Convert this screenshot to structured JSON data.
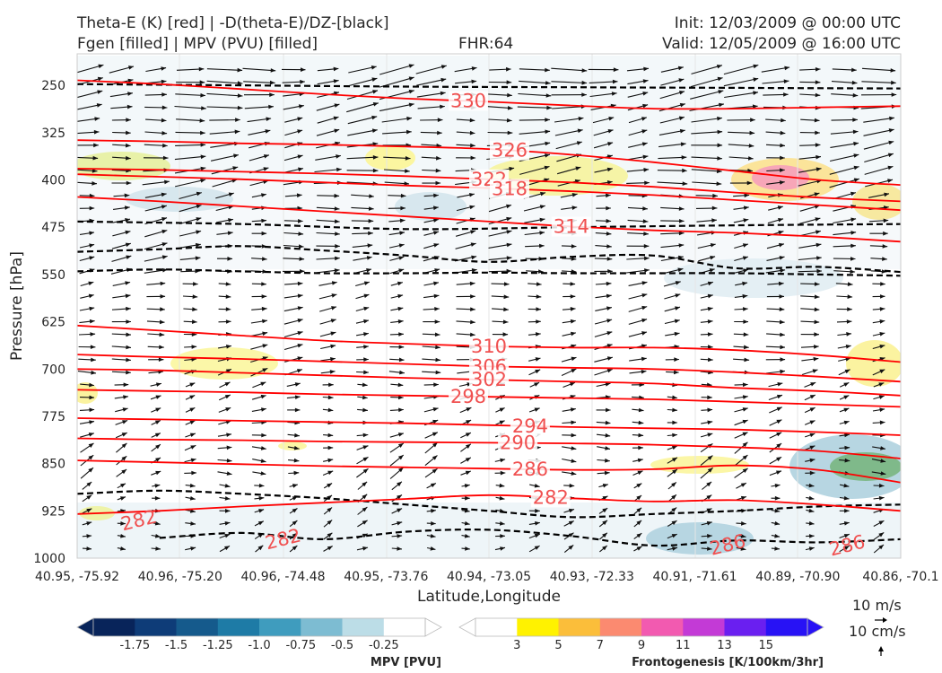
{
  "header": {
    "title_left_1": "Theta-E (K) [red] | -D(theta-E)/DZ-[black]",
    "title_left_2": "Fgen [filled] | MPV (PVU) [filled]",
    "title_center": "FHR:64",
    "title_right_1": "Init: 12/03/2009 @ 00:00 UTC",
    "title_right_2": "Valid: 12/05/2009 @ 16:00 UTC"
  },
  "chart_data": {
    "type": "contour",
    "xlabel": "Latitude,Longitude",
    "ylabel": "Pressure [hPa]",
    "x_ticks": [
      "40.95, -75.92",
      "40.96, -75.20",
      "40.96, -74.48",
      "40.95, -73.76",
      "40.94, -73.05",
      "40.93, -72.33",
      "40.91, -71.61",
      "40.89, -70.90",
      "40.86, -70.1"
    ],
    "y_ticks": [
      250,
      325,
      400,
      475,
      550,
      625,
      700,
      775,
      850,
      925,
      1000
    ],
    "ylim": [
      1000,
      200
    ],
    "theta_e_contours": [
      {
        "label": "330",
        "points": [
          [
            0.0,
            242
          ],
          [
            0.1,
            248
          ],
          [
            0.2,
            256
          ],
          [
            0.3,
            264
          ],
          [
            0.4,
            271
          ],
          [
            0.5,
            276
          ],
          [
            0.6,
            282
          ],
          [
            0.7,
            287
          ],
          [
            0.8,
            287
          ],
          [
            0.9,
            285
          ],
          [
            1.0,
            283
          ]
        ]
      },
      {
        "label": "326",
        "points": [
          [
            0.0,
            337
          ],
          [
            0.1,
            339
          ],
          [
            0.2,
            342
          ],
          [
            0.3,
            344
          ],
          [
            0.4,
            347
          ],
          [
            0.5,
            351
          ],
          [
            0.6,
            360
          ],
          [
            0.7,
            372
          ],
          [
            0.8,
            386
          ],
          [
            0.9,
            400
          ],
          [
            1.0,
            408
          ]
        ]
      },
      {
        "label": "322",
        "points": [
          [
            0.0,
            382
          ],
          [
            0.1,
            384
          ],
          [
            0.2,
            387
          ],
          [
            0.3,
            390
          ],
          [
            0.4,
            394
          ],
          [
            0.5,
            399
          ],
          [
            0.6,
            404
          ],
          [
            0.7,
            411
          ],
          [
            0.8,
            420
          ],
          [
            0.9,
            428
          ],
          [
            1.0,
            434
          ]
        ]
      },
      {
        "label": "318",
        "points": [
          [
            0.0,
            391
          ],
          [
            0.1,
            395
          ],
          [
            0.2,
            399
          ],
          [
            0.3,
            404
          ],
          [
            0.4,
            409
          ],
          [
            0.5,
            413
          ],
          [
            0.6,
            418
          ],
          [
            0.7,
            424
          ],
          [
            0.8,
            432
          ],
          [
            0.9,
            440
          ],
          [
            1.0,
            448
          ]
        ]
      },
      {
        "label": "314",
        "points": [
          [
            0.0,
            427
          ],
          [
            0.1,
            434
          ],
          [
            0.2,
            442
          ],
          [
            0.3,
            450
          ],
          [
            0.4,
            458
          ],
          [
            0.5,
            466
          ],
          [
            0.6,
            474
          ],
          [
            0.7,
            480
          ],
          [
            0.8,
            484
          ],
          [
            0.9,
            490
          ],
          [
            1.0,
            498
          ]
        ]
      },
      {
        "label": "310",
        "points": [
          [
            0.0,
            631
          ],
          [
            0.1,
            639
          ],
          [
            0.2,
            647
          ],
          [
            0.3,
            655
          ],
          [
            0.4,
            660
          ],
          [
            0.5,
            664
          ],
          [
            0.6,
            666
          ],
          [
            0.7,
            666
          ],
          [
            0.8,
            670
          ],
          [
            0.9,
            678
          ],
          [
            1.0,
            689
          ]
        ]
      },
      {
        "label": "306",
        "points": [
          [
            0.0,
            677
          ],
          [
            0.1,
            681
          ],
          [
            0.2,
            684
          ],
          [
            0.3,
            688
          ],
          [
            0.4,
            692
          ],
          [
            0.5,
            696
          ],
          [
            0.6,
            698
          ],
          [
            0.7,
            700
          ],
          [
            0.8,
            705
          ],
          [
            0.9,
            712
          ],
          [
            1.0,
            720
          ]
        ]
      },
      {
        "label": "302",
        "points": [
          [
            0.0,
            700
          ],
          [
            0.1,
            702
          ],
          [
            0.2,
            706
          ],
          [
            0.3,
            710
          ],
          [
            0.4,
            714
          ],
          [
            0.5,
            717
          ],
          [
            0.6,
            720
          ],
          [
            0.7,
            723
          ],
          [
            0.8,
            730
          ],
          [
            0.9,
            735
          ],
          [
            1.0,
            742
          ]
        ]
      },
      {
        "label": "298",
        "points": [
          [
            0.0,
            733
          ],
          [
            0.1,
            735
          ],
          [
            0.2,
            737
          ],
          [
            0.3,
            740
          ],
          [
            0.4,
            742
          ],
          [
            0.5,
            744
          ],
          [
            0.6,
            746
          ],
          [
            0.7,
            748
          ],
          [
            0.8,
            752
          ],
          [
            0.9,
            756
          ],
          [
            1.0,
            760
          ]
        ]
      },
      {
        "label": "294",
        "points": [
          [
            0.0,
            778
          ],
          [
            0.1,
            780
          ],
          [
            0.2,
            782
          ],
          [
            0.3,
            784
          ],
          [
            0.4,
            786
          ],
          [
            0.5,
            789
          ],
          [
            0.6,
            792
          ],
          [
            0.7,
            794
          ],
          [
            0.8,
            796
          ],
          [
            0.9,
            800
          ],
          [
            1.0,
            805
          ]
        ]
      },
      {
        "label": "290",
        "points": [
          [
            0.0,
            810
          ],
          [
            0.1,
            812
          ],
          [
            0.2,
            813
          ],
          [
            0.3,
            815
          ],
          [
            0.4,
            816
          ],
          [
            0.5,
            817
          ],
          [
            0.6,
            818
          ],
          [
            0.7,
            820
          ],
          [
            0.8,
            824
          ],
          [
            0.9,
            830
          ],
          [
            1.0,
            842
          ]
        ]
      },
      {
        "label": "286",
        "points": [
          [
            0.0,
            845
          ],
          [
            0.1,
            848
          ],
          [
            0.2,
            851
          ],
          [
            0.3,
            854
          ],
          [
            0.4,
            856
          ],
          [
            0.5,
            858
          ],
          [
            0.6,
            860
          ],
          [
            0.7,
            859
          ],
          [
            0.8,
            853
          ],
          [
            0.9,
            860
          ],
          [
            1.0,
            880
          ]
        ]
      },
      {
        "label": "282",
        "points": [
          [
            0.0,
            930
          ],
          [
            0.1,
            925
          ],
          [
            0.2,
            918
          ],
          [
            0.3,
            912
          ],
          [
            0.4,
            906
          ],
          [
            0.5,
            900
          ],
          [
            0.6,
            905
          ],
          [
            0.7,
            910
          ],
          [
            0.8,
            908
          ],
          [
            0.9,
            915
          ],
          [
            1.0,
            925
          ]
        ]
      }
    ],
    "extra_contour_labels": [
      {
        "label": "282",
        "x": 0.075,
        "p": 940
      },
      {
        "label": "282",
        "x": 0.25,
        "p": 970
      },
      {
        "label": "286",
        "x": 0.79,
        "p": 979
      },
      {
        "label": "286",
        "x": 0.935,
        "p": 980
      }
    ],
    "dashed_contours": [
      {
        "points": [
          [
            0.0,
            248
          ],
          [
            0.2,
            250
          ],
          [
            0.4,
            252
          ],
          [
            0.6,
            253
          ],
          [
            0.8,
            254
          ],
          [
            1.0,
            255
          ]
        ]
      },
      {
        "points": [
          [
            0.0,
            466
          ],
          [
            0.2,
            470
          ],
          [
            0.4,
            478
          ],
          [
            0.6,
            475
          ],
          [
            0.8,
            472
          ],
          [
            1.0,
            470
          ]
        ]
      },
      {
        "points": [
          [
            0.0,
            514
          ],
          [
            0.1,
            510
          ],
          [
            0.2,
            505
          ],
          [
            0.3,
            512
          ],
          [
            0.4,
            520
          ],
          [
            0.5,
            530
          ],
          [
            0.6,
            522
          ],
          [
            0.7,
            520
          ],
          [
            0.8,
            540
          ],
          [
            0.9,
            538
          ],
          [
            1.0,
            546
          ]
        ]
      },
      {
        "points": [
          [
            0.0,
            545
          ],
          [
            0.1,
            542
          ],
          [
            0.2,
            545
          ],
          [
            0.3,
            548
          ],
          [
            0.4,
            548
          ],
          [
            0.5,
            547
          ],
          [
            0.6,
            548
          ],
          [
            0.7,
            548
          ],
          [
            0.8,
            548
          ],
          [
            0.9,
            550
          ],
          [
            1.0,
            552
          ]
        ]
      },
      {
        "points": [
          [
            0.0,
            898
          ],
          [
            0.1,
            893
          ],
          [
            0.2,
            898
          ],
          [
            0.3,
            905
          ],
          [
            0.4,
            915
          ],
          [
            0.5,
            925
          ],
          [
            0.6,
            935
          ],
          [
            0.7,
            930
          ],
          [
            0.8,
            925
          ],
          [
            0.9,
            918
          ],
          [
            1.0,
            915
          ]
        ]
      },
      {
        "points": [
          [
            0.1,
            968
          ],
          [
            0.2,
            960
          ],
          [
            0.3,
            970
          ],
          [
            0.4,
            958
          ],
          [
            0.5,
            955
          ],
          [
            0.6,
            965
          ],
          [
            0.7,
            980
          ],
          [
            0.8,
            972
          ],
          [
            0.9,
            975
          ],
          [
            1.0,
            970
          ]
        ]
      }
    ],
    "colorbar_mpv": {
      "title": "MPV [PVU]",
      "levels": [
        "-1.75",
        "-1.5",
        "-1.25",
        "-1.0",
        "-0.75",
        "-0.5",
        "-0.25"
      ],
      "colors": [
        "#08245a",
        "#0e3c78",
        "#155a8c",
        "#1e7ba6",
        "#3f9cbe",
        "#7dbcd2",
        "#bcdde7",
        "#ffffff"
      ]
    },
    "colorbar_fgen": {
      "title": "Frontogenesis [K/100km/3hr]",
      "levels": [
        "3",
        "5",
        "7",
        "9",
        "11",
        "13",
        "15"
      ],
      "colors": [
        "#ffffff",
        "#fff200",
        "#fbbe3a",
        "#fb8a70",
        "#f25ab0",
        "#c33ad6",
        "#6a1ff0",
        "#2812f5"
      ]
    },
    "wind_key": {
      "u": "10 m/s",
      "w": "10 cm/s"
    }
  },
  "colors": {
    "theta_e": "#ff0000",
    "theta_e_label": "#f05050",
    "dtheta_dz": "#000000",
    "mpv_shade": "#dbe9ef",
    "frame": "#999999"
  }
}
